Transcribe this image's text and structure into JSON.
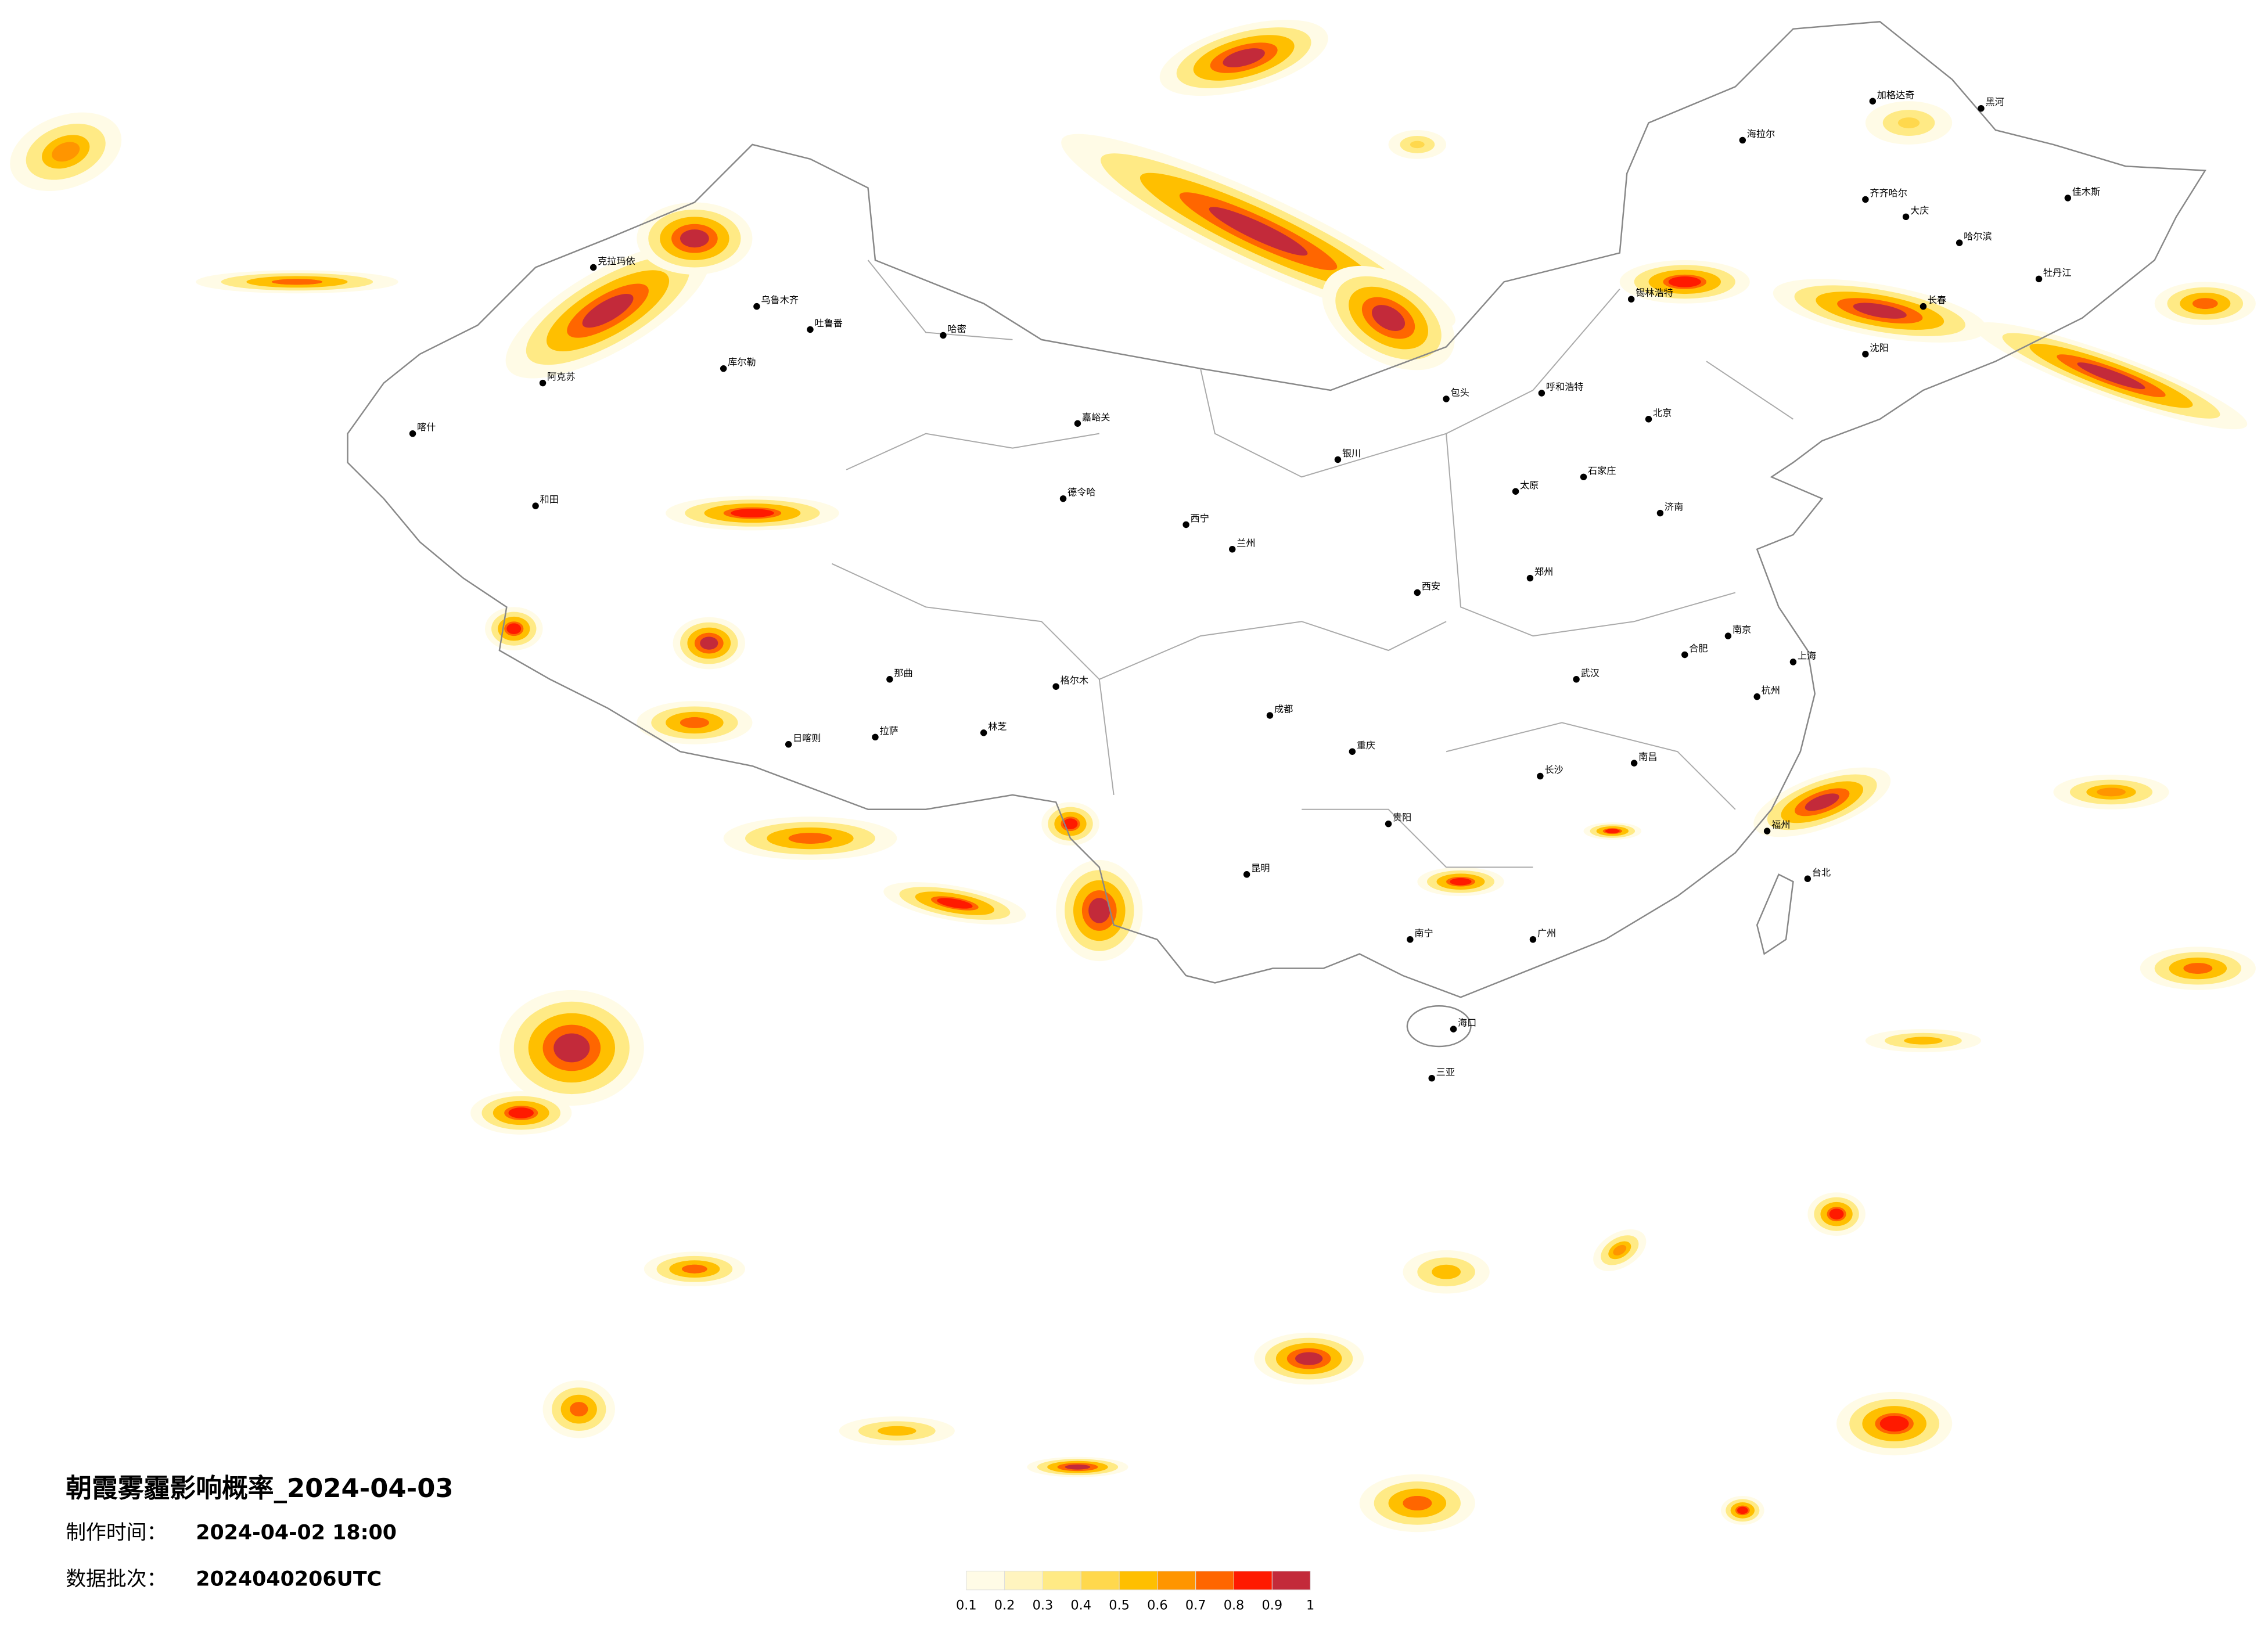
{
  "title": "朝霞雾霾影响概率_2024-04-03",
  "made_label": "制作时间：",
  "made_value": "2024-04-02 18:00",
  "batch_label": "数据批次：",
  "batch_value": "2024040206UTC",
  "legend": {
    "ticks": [
      0.1,
      0.2,
      0.3,
      0.4,
      0.5,
      0.6,
      0.7,
      0.8,
      0.9,
      1
    ],
    "colors": [
      "#fffbe6",
      "#fff4bf",
      "#ffea85",
      "#ffd84d",
      "#ffbf00",
      "#ff9500",
      "#ff6600",
      "#ff1a00",
      "#c32a3a"
    ]
  },
  "cities": [
    "海拉尔",
    "加格达奇",
    "黑河",
    "齐齐哈尔",
    "大庆",
    "哈尔滨",
    "佳木斯",
    "牡丹江",
    "长春",
    "沈阳",
    "锡林浩特",
    "呼和浩特",
    "包头",
    "北京",
    "石家庄",
    "太原",
    "济南",
    "郑州",
    "西安",
    "兰州",
    "西宁",
    "银川",
    "武汉",
    "合肥",
    "南京",
    "上海",
    "杭州",
    "福州",
    "台北",
    "南昌",
    "长沙",
    "贵阳",
    "昆明",
    "成都",
    "重庆",
    "南宁",
    "广州",
    "海口",
    "三亚",
    "拉萨",
    "日喀则",
    "那曲",
    "格尔木",
    "德令哈",
    "和田",
    "喀什",
    "阿克苏",
    "乌鲁木齐",
    "克拉玛依",
    "吐鲁番",
    "哈密",
    "库尔勒",
    "嘉峪关",
    "林芝"
  ]
}
